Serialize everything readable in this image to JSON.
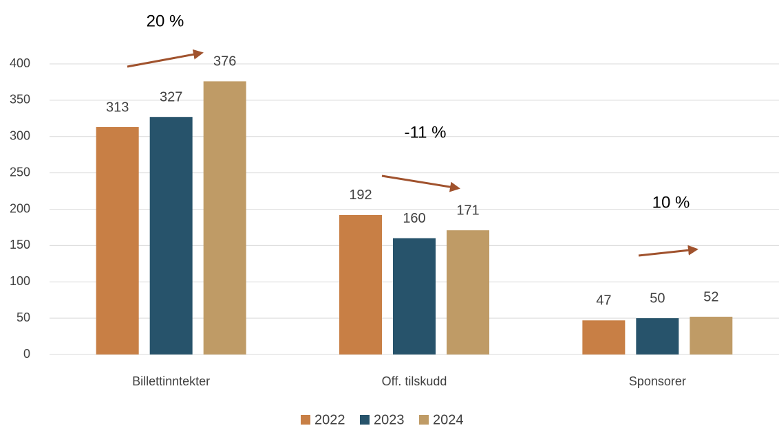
{
  "chart_data": {
    "type": "bar",
    "categories": [
      "Billettinntekter",
      "Off. tilskudd",
      "Sponsorer"
    ],
    "series": [
      {
        "name": "2022",
        "color": "#c87f45",
        "values": [
          313,
          192,
          47
        ]
      },
      {
        "name": "2023",
        "color": "#27536b",
        "values": [
          327,
          160,
          50
        ]
      },
      {
        "name": "2024",
        "color": "#bf9b66",
        "values": [
          376,
          171,
          52
        ]
      }
    ],
    "ylim": [
      0,
      400
    ],
    "yticks": [
      0,
      50,
      100,
      150,
      200,
      250,
      300,
      350,
      400
    ],
    "grid": true,
    "legend": "bottom",
    "annotations": [
      "20 %",
      "-11 %",
      "10 %"
    ]
  }
}
